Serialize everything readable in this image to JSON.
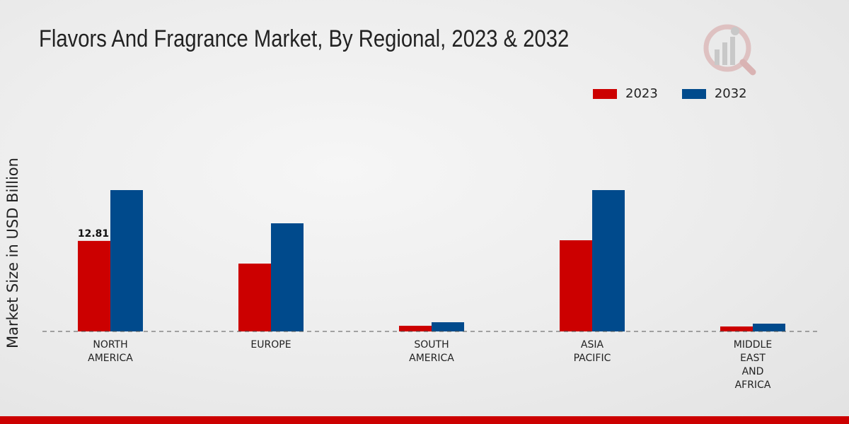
{
  "chart_data": {
    "type": "bar",
    "title": "Flavors And Fragrance Market, By Regional, 2023 & 2032",
    "ylabel": "Market Size in USD Billion",
    "xlabel": "",
    "categories": [
      [
        "NORTH",
        "AMERICA"
      ],
      [
        "EUROPE"
      ],
      [
        "SOUTH",
        "AMERICA"
      ],
      [
        "ASIA",
        "PACIFIC"
      ],
      [
        "MIDDLE",
        "EAST",
        "AND",
        "AFRICA"
      ]
    ],
    "series": [
      {
        "name": "2023",
        "color": "#cc0000",
        "values": [
          12.81,
          9.6,
          0.8,
          12.9,
          0.7
        ]
      },
      {
        "name": "2032",
        "color": "#004a8c",
        "values": [
          20.0,
          15.3,
          1.3,
          20.0,
          1.1
        ]
      }
    ],
    "data_labels": [
      {
        "series": 0,
        "index": 0,
        "text": "12.81"
      }
    ],
    "ylim": [
      0,
      34
    ],
    "legend": "top-right"
  }
}
